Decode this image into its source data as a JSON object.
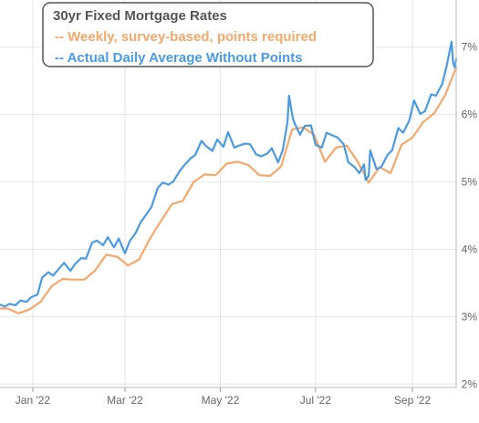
{
  "chart_data": {
    "type": "line",
    "title": "30yr Fixed Mortgage Rates",
    "xlabel": "",
    "ylabel": "",
    "grid": true,
    "legend": "top-left",
    "x_tick_labels": [
      "Jan '22",
      "Mar '22",
      "May '22",
      "Jul '22",
      "Sep '22"
    ],
    "x_ticks": [
      "2022-01-01",
      "2022-03-01",
      "2022-05-01",
      "2022-07-01",
      "2022-09-01"
    ],
    "xlim": [
      "2021-12-11",
      "2022-09-29"
    ],
    "y_ticks": [
      2,
      3,
      4,
      5,
      6,
      7
    ],
    "y_tick_labels": [
      "2%",
      "3%",
      "4%",
      "5%",
      "6%",
      "7%"
    ],
    "ylim": [
      1.95,
      7.7
    ],
    "series": [
      {
        "name": "-- Weekly, survey-based, points required",
        "color": "#f4a86a",
        "x": [
          "2021-12-11",
          "2021-12-16",
          "2021-12-23",
          "2021-12-30",
          "2022-01-06",
          "2022-01-13",
          "2022-01-20",
          "2022-01-27",
          "2022-02-03",
          "2022-02-10",
          "2022-02-17",
          "2022-02-24",
          "2022-03-03",
          "2022-03-10",
          "2022-03-17",
          "2022-03-24",
          "2022-03-31",
          "2022-04-07",
          "2022-04-14",
          "2022-04-21",
          "2022-04-28",
          "2022-05-05",
          "2022-05-12",
          "2022-05-19",
          "2022-05-26",
          "2022-06-02",
          "2022-06-09",
          "2022-06-16",
          "2022-06-23",
          "2022-06-30",
          "2022-07-07",
          "2022-07-14",
          "2022-07-21",
          "2022-07-28",
          "2022-08-04",
          "2022-08-11",
          "2022-08-18",
          "2022-08-25",
          "2022-09-01",
          "2022-09-08",
          "2022-09-15",
          "2022-09-22",
          "2022-09-29"
        ],
        "values": [
          3.12,
          3.12,
          3.05,
          3.11,
          3.22,
          3.45,
          3.56,
          3.55,
          3.55,
          3.69,
          3.92,
          3.89,
          3.76,
          3.85,
          4.16,
          4.42,
          4.67,
          4.72,
          5.0,
          5.11,
          5.1,
          5.27,
          5.3,
          5.25,
          5.1,
          5.09,
          5.23,
          5.78,
          5.81,
          5.7,
          5.3,
          5.51,
          5.54,
          5.3,
          4.99,
          5.22,
          5.13,
          5.55,
          5.66,
          5.89,
          6.02,
          6.29,
          6.7
        ]
      },
      {
        "name": "-- Actual Daily Average Without Points",
        "color": "#4a9be4",
        "x": [
          "2021-12-11",
          "2021-12-14",
          "2021-12-17",
          "2021-12-21",
          "2021-12-24",
          "2021-12-28",
          "2021-12-31",
          "2022-01-04",
          "2022-01-07",
          "2022-01-11",
          "2022-01-14",
          "2022-01-18",
          "2022-01-21",
          "2022-01-25",
          "2022-01-28",
          "2022-02-01",
          "2022-02-04",
          "2022-02-08",
          "2022-02-11",
          "2022-02-15",
          "2022-02-18",
          "2022-02-22",
          "2022-02-25",
          "2022-03-01",
          "2022-03-04",
          "2022-03-08",
          "2022-03-11",
          "2022-03-15",
          "2022-03-18",
          "2022-03-22",
          "2022-03-25",
          "2022-03-29",
          "2022-04-01",
          "2022-04-05",
          "2022-04-08",
          "2022-04-12",
          "2022-04-15",
          "2022-04-19",
          "2022-04-22",
          "2022-04-26",
          "2022-04-29",
          "2022-05-03",
          "2022-05-06",
          "2022-05-10",
          "2022-05-13",
          "2022-05-17",
          "2022-05-20",
          "2022-05-24",
          "2022-05-27",
          "2022-05-31",
          "2022-06-03",
          "2022-06-07",
          "2022-06-10",
          "2022-06-13",
          "2022-06-14",
          "2022-06-16",
          "2022-06-17",
          "2022-06-21",
          "2022-06-24",
          "2022-06-28",
          "2022-07-01",
          "2022-07-05",
          "2022-07-08",
          "2022-07-12",
          "2022-07-15",
          "2022-07-19",
          "2022-07-22",
          "2022-07-26",
          "2022-07-29",
          "2022-08-01",
          "2022-08-02",
          "2022-08-04",
          "2022-08-05",
          "2022-08-09",
          "2022-08-12",
          "2022-08-16",
          "2022-08-19",
          "2022-08-23",
          "2022-08-26",
          "2022-08-30",
          "2022-09-02",
          "2022-09-06",
          "2022-09-09",
          "2022-09-13",
          "2022-09-16",
          "2022-09-20",
          "2022-09-23",
          "2022-09-26",
          "2022-09-27",
          "2022-09-28",
          "2022-09-29"
        ],
        "values": [
          3.18,
          3.15,
          3.19,
          3.17,
          3.24,
          3.22,
          3.29,
          3.33,
          3.58,
          3.66,
          3.61,
          3.72,
          3.8,
          3.68,
          3.78,
          3.87,
          3.86,
          4.1,
          4.13,
          4.06,
          4.18,
          4.03,
          4.16,
          3.94,
          4.12,
          4.25,
          4.4,
          4.53,
          4.63,
          4.91,
          4.99,
          4.96,
          5.01,
          5.16,
          5.25,
          5.35,
          5.4,
          5.61,
          5.53,
          5.46,
          5.63,
          5.52,
          5.74,
          5.51,
          5.54,
          5.57,
          5.56,
          5.41,
          5.38,
          5.42,
          5.5,
          5.29,
          5.47,
          5.89,
          6.28,
          6.0,
          5.9,
          5.7,
          5.83,
          5.84,
          5.55,
          5.51,
          5.73,
          5.69,
          5.66,
          5.56,
          5.29,
          5.22,
          5.13,
          5.26,
          5.03,
          5.09,
          5.47,
          5.19,
          5.22,
          5.4,
          5.47,
          5.8,
          5.73,
          5.91,
          6.21,
          6.01,
          6.05,
          6.3,
          6.28,
          6.45,
          6.73,
          7.08,
          6.77,
          6.7,
          6.82
        ]
      }
    ]
  }
}
